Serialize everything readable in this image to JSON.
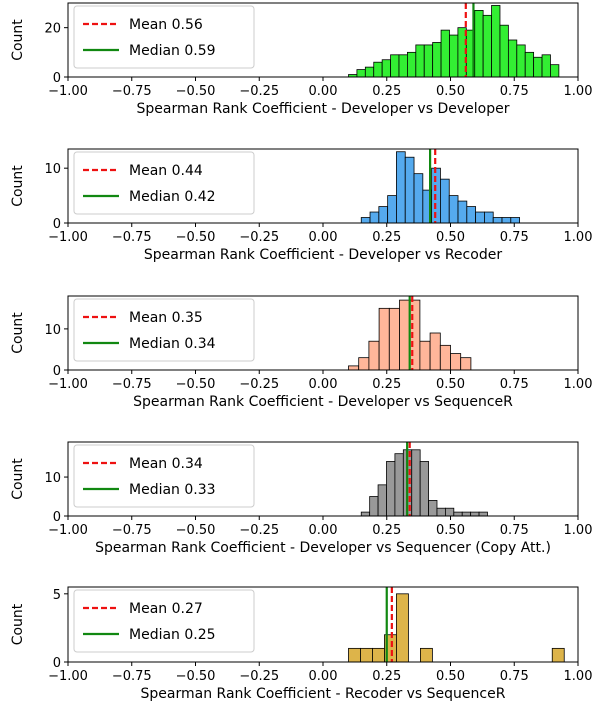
{
  "chart_data": [
    {
      "type": "histogram",
      "xlabel": "Spearman Rank Coefficient - Developer vs Developer",
      "ylabel": "Count",
      "xlim": [
        -1.0,
        1.0
      ],
      "ylim": [
        0,
        30
      ],
      "x_ticks": [
        "−1.00",
        "−0.75",
        "−0.50",
        "−0.25",
        "0.00",
        "0.25",
        "0.50",
        "0.75",
        "1.00"
      ],
      "y_ticks": [
        "0",
        "20"
      ],
      "y_tick_values": [
        0,
        20
      ],
      "bar_color": "#33ee33",
      "bin_start": 0.1,
      "bin_width": 0.033,
      "counts": [
        1,
        3,
        4,
        6,
        7,
        9,
        9,
        10,
        13,
        13,
        14,
        19,
        17,
        20,
        19,
        27,
        25,
        29,
        21,
        15,
        13,
        10,
        8,
        9,
        5
      ],
      "legend": [
        {
          "label": "Mean 0.56",
          "style": "dashed",
          "color": "#ee1111"
        },
        {
          "label": "Median 0.59",
          "style": "solid",
          "color": "#118811"
        }
      ],
      "mean": 0.56,
      "median": 0.59
    },
    {
      "type": "histogram",
      "xlabel": "Spearman Rank Coefficient - Developer vs Recoder",
      "ylabel": "Count",
      "xlim": [
        -1.0,
        1.0
      ],
      "ylim": [
        0,
        13.5
      ],
      "x_ticks": [
        "−1.00",
        "−0.75",
        "−0.50",
        "−0.25",
        "0.00",
        "0.25",
        "0.50",
        "0.75",
        "1.00"
      ],
      "y_ticks": [
        "0",
        "10"
      ],
      "y_tick_values": [
        0,
        10
      ],
      "bar_color": "#55aaee",
      "bin_start": 0.15,
      "bin_width": 0.0345,
      "counts": [
        1,
        2,
        3,
        5,
        13,
        12,
        9,
        6,
        10,
        8,
        5,
        4,
        3,
        2,
        2,
        1,
        1,
        1
      ],
      "legend": [
        {
          "label": "Mean 0.44",
          "style": "dashed",
          "color": "#ee1111"
        },
        {
          "label": "Median 0.42",
          "style": "solid",
          "color": "#118811"
        }
      ],
      "mean": 0.44,
      "median": 0.42
    },
    {
      "type": "histogram",
      "xlabel": "Spearman Rank Coefficient - Developer vs SequenceR",
      "ylabel": "Count",
      "xlim": [
        -1.0,
        1.0
      ],
      "ylim": [
        0,
        18
      ],
      "x_ticks": [
        "−1.00",
        "−0.75",
        "−0.50",
        "−0.25",
        "0.00",
        "0.25",
        "0.50",
        "0.75",
        "1.00"
      ],
      "y_ticks": [
        "0",
        "10"
      ],
      "y_tick_values": [
        0,
        10
      ],
      "bar_color": "#ffb69a",
      "bin_start": 0.1,
      "bin_width": 0.04,
      "counts": [
        1,
        3,
        7,
        15,
        15,
        17,
        17,
        7,
        9,
        6,
        4,
        3
      ],
      "legend": [
        {
          "label": "Mean 0.35",
          "style": "dashed",
          "color": "#ee1111"
        },
        {
          "label": "Median 0.34",
          "style": "solid",
          "color": "#118811"
        }
      ],
      "mean": 0.35,
      "median": 0.34
    },
    {
      "type": "histogram",
      "xlabel": "Spearman Rank Coefficient - Developer vs Sequencer (Copy Att.)",
      "ylabel": "Count",
      "xlim": [
        -1.0,
        1.0
      ],
      "ylim": [
        0,
        19
      ],
      "x_ticks": [
        "−1.00",
        "−0.75",
        "−0.50",
        "−0.25",
        "0.00",
        "0.25",
        "0.50",
        "0.75",
        "1.00"
      ],
      "y_ticks": [
        "0",
        "10"
      ],
      "y_tick_values": [
        0,
        10
      ],
      "bar_color": "#999999",
      "bin_start": 0.15,
      "bin_width": 0.033,
      "counts": [
        1,
        5,
        8,
        14,
        16,
        17,
        17,
        14,
        4,
        2,
        2,
        1,
        1,
        1,
        1
      ],
      "legend": [
        {
          "label": "Mean 0.34",
          "style": "dashed",
          "color": "#ee1111"
        },
        {
          "label": "Median 0.33",
          "style": "solid",
          "color": "#118811"
        }
      ],
      "mean": 0.34,
      "median": 0.33
    },
    {
      "type": "histogram",
      "xlabel": "Spearman Rank Coefficient - Recoder vs SequenceR",
      "ylabel": "Count",
      "xlim": [
        -1.0,
        1.0
      ],
      "ylim": [
        0,
        5.5
      ],
      "x_ticks": [
        "−1.00",
        "−0.75",
        "−0.50",
        "−0.25",
        "0.00",
        "0.25",
        "0.50",
        "0.75",
        "1.00"
      ],
      "y_ticks": [
        "0",
        "5"
      ],
      "y_tick_values": [
        0,
        5
      ],
      "bar_color": "#ddb44a",
      "bin_start": 0.1,
      "bin_width": 0.047,
      "counts": [
        1,
        1,
        1,
        2,
        5,
        0,
        1,
        0,
        0,
        0,
        0,
        0,
        0,
        0,
        0,
        0,
        0,
        1
      ],
      "legend": [
        {
          "label": "Mean 0.27",
          "style": "dashed",
          "color": "#ee1111"
        },
        {
          "label": "Median 0.25",
          "style": "solid",
          "color": "#118811"
        }
      ],
      "mean": 0.27,
      "median": 0.25
    }
  ]
}
